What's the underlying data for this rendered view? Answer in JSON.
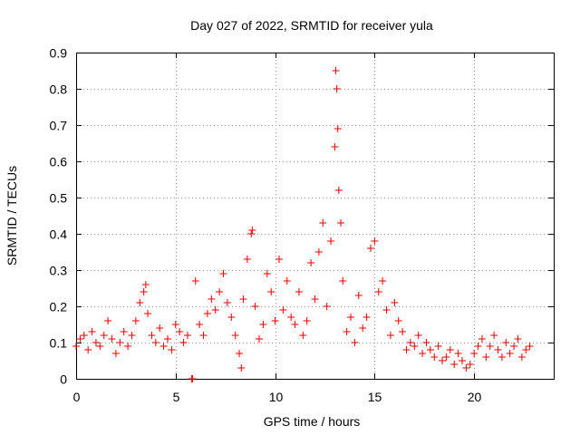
{
  "chart_data": {
    "type": "scatter",
    "title": "Day 027 of 2022, SRMTID for receiver yula",
    "xlabel": "GPS time / hours",
    "ylabel": "SRMTID / TECUs",
    "xlim": [
      0,
      24
    ],
    "ylim": [
      0,
      0.9
    ],
    "xticks": [
      0,
      5,
      10,
      15,
      20
    ],
    "xtick_labels": [
      "0",
      "5",
      "10",
      "15",
      "20"
    ],
    "yticks": [
      0,
      0.1,
      0.2,
      0.3,
      0.4,
      0.5,
      0.6,
      0.7,
      0.8,
      0.9
    ],
    "ytick_labels": [
      "0",
      "0.1",
      "0.2",
      "0.3",
      "0.4",
      "0.5",
      "0.6",
      "0.7",
      "0.8",
      "0.9"
    ],
    "grid": true,
    "marker": "plus",
    "color": "#ee0000",
    "series": [
      {
        "name": "SRMTID",
        "x": [
          0.0,
          0.2,
          0.4,
          0.6,
          0.8,
          1.0,
          1.2,
          1.4,
          1.6,
          1.8,
          2.0,
          2.2,
          2.4,
          2.6,
          2.8,
          3.0,
          3.2,
          3.4,
          3.5,
          3.6,
          3.8,
          4.0,
          4.2,
          4.4,
          4.6,
          4.8,
          5.0,
          5.2,
          5.4,
          5.6,
          5.8,
          5.85,
          6.0,
          6.2,
          6.4,
          6.6,
          6.8,
          7.0,
          7.2,
          7.4,
          7.6,
          7.8,
          8.0,
          8.2,
          8.3,
          8.4,
          8.6,
          8.8,
          8.85,
          9.0,
          9.2,
          9.4,
          9.6,
          9.8,
          10.0,
          10.2,
          10.4,
          10.6,
          10.8,
          11.0,
          11.2,
          11.4,
          11.6,
          11.8,
          12.0,
          12.2,
          12.4,
          12.6,
          12.8,
          13.0,
          13.05,
          13.1,
          13.15,
          13.2,
          13.3,
          13.4,
          13.6,
          13.8,
          14.0,
          14.2,
          14.4,
          14.6,
          14.8,
          15.0,
          15.2,
          15.4,
          15.6,
          15.8,
          16.0,
          16.2,
          16.4,
          16.6,
          16.8,
          17.0,
          17.2,
          17.4,
          17.6,
          17.8,
          18.0,
          18.2,
          18.4,
          18.6,
          18.8,
          19.0,
          19.2,
          19.4,
          19.6,
          19.8,
          20.0,
          20.2,
          20.4,
          20.6,
          20.8,
          21.0,
          21.2,
          21.4,
          21.6,
          21.8,
          22.0,
          22.2,
          22.4,
          22.6,
          22.8
        ],
        "y": [
          0.09,
          0.11,
          0.12,
          0.08,
          0.13,
          0.1,
          0.09,
          0.12,
          0.16,
          0.11,
          0.07,
          0.1,
          0.13,
          0.09,
          0.12,
          0.16,
          0.21,
          0.24,
          0.26,
          0.18,
          0.12,
          0.1,
          0.14,
          0.09,
          0.11,
          0.08,
          0.15,
          0.13,
          0.1,
          0.12,
          0.0,
          0.0,
          0.27,
          0.15,
          0.12,
          0.18,
          0.22,
          0.19,
          0.24,
          0.29,
          0.21,
          0.17,
          0.12,
          0.07,
          0.03,
          0.22,
          0.33,
          0.4,
          0.41,
          0.2,
          0.11,
          0.15,
          0.29,
          0.24,
          0.16,
          0.33,
          0.19,
          0.27,
          0.17,
          0.15,
          0.24,
          0.12,
          0.16,
          0.32,
          0.22,
          0.35,
          0.43,
          0.2,
          0.38,
          0.64,
          0.85,
          0.8,
          0.69,
          0.52,
          0.43,
          0.27,
          0.13,
          0.17,
          0.1,
          0.23,
          0.14,
          0.17,
          0.36,
          0.38,
          0.24,
          0.27,
          0.19,
          0.12,
          0.21,
          0.16,
          0.13,
          0.08,
          0.1,
          0.09,
          0.12,
          0.07,
          0.1,
          0.08,
          0.06,
          0.09,
          0.05,
          0.06,
          0.08,
          0.04,
          0.07,
          0.05,
          0.03,
          0.04,
          0.07,
          0.09,
          0.11,
          0.06,
          0.09,
          0.12,
          0.08,
          0.06,
          0.1,
          0.07,
          0.09,
          0.11,
          0.06,
          0.08,
          0.09
        ]
      }
    ]
  }
}
